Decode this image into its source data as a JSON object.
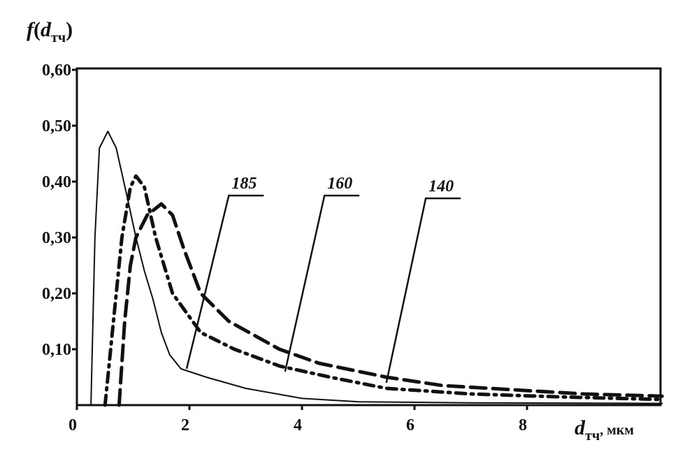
{
  "chart_data": {
    "type": "line",
    "ylabel": "f(dтч)",
    "ylabel_main": "f",
    "ylabel_paren_open": "(",
    "ylabel_var": "d",
    "ylabel_sub": "тч",
    "ylabel_paren_close": ")",
    "xlabel_var": "d",
    "xlabel_sub": "тч",
    "xlabel_unit": ", мкм",
    "xlim": [
      0,
      10.4
    ],
    "ylim": [
      0,
      0.6
    ],
    "xticks": [
      {
        "v": 0,
        "label": "0"
      },
      {
        "v": 2,
        "label": "2"
      },
      {
        "v": 4,
        "label": "4"
      },
      {
        "v": 6,
        "label": "6"
      },
      {
        "v": 8,
        "label": "8"
      }
    ],
    "yticks": [
      {
        "v": 0.1,
        "label": "0,10"
      },
      {
        "v": 0.2,
        "label": "0,20"
      },
      {
        "v": 0.3,
        "label": "0,30"
      },
      {
        "v": 0.4,
        "label": "0,40"
      },
      {
        "v": 0.5,
        "label": "0,50"
      },
      {
        "v": 0.6,
        "label": "0,60"
      }
    ],
    "grid": false,
    "series": [
      {
        "name": "185",
        "style": "solid",
        "points": [
          [
            0.25,
            0
          ],
          [
            0.32,
            0.3
          ],
          [
            0.4,
            0.46
          ],
          [
            0.55,
            0.49
          ],
          [
            0.7,
            0.46
          ],
          [
            0.9,
            0.37
          ],
          [
            1.05,
            0.3
          ],
          [
            1.2,
            0.24
          ],
          [
            1.35,
            0.19
          ],
          [
            1.5,
            0.13
          ],
          [
            1.65,
            0.09
          ],
          [
            1.85,
            0.065
          ],
          [
            2.3,
            0.05
          ],
          [
            3,
            0.03
          ],
          [
            4,
            0.012
          ],
          [
            5,
            0.006
          ],
          [
            7,
            0.004
          ],
          [
            10.4,
            0.003
          ]
        ],
        "label_anchor": [
          1.95,
          0.065
        ],
        "label_at": [
          2.7,
          0.375
        ]
      },
      {
        "name": "160",
        "style": "dashdot",
        "points": [
          [
            0.5,
            0
          ],
          [
            0.65,
            0.15
          ],
          [
            0.8,
            0.3
          ],
          [
            0.95,
            0.39
          ],
          [
            1.05,
            0.41
          ],
          [
            1.2,
            0.39
          ],
          [
            1.4,
            0.3
          ],
          [
            1.7,
            0.2
          ],
          [
            2.2,
            0.13
          ],
          [
            2.8,
            0.1
          ],
          [
            3.6,
            0.07
          ],
          [
            4.5,
            0.05
          ],
          [
            5.5,
            0.03
          ],
          [
            7,
            0.02
          ],
          [
            8.5,
            0.015
          ],
          [
            10.4,
            0.01
          ]
        ],
        "label_anchor": [
          3.7,
          0.06
        ],
        "label_at": [
          4.4,
          0.375
        ]
      },
      {
        "name": "140",
        "style": "dashed",
        "points": [
          [
            0.75,
            0
          ],
          [
            0.85,
            0.15
          ],
          [
            0.95,
            0.25
          ],
          [
            1.05,
            0.3
          ],
          [
            1.25,
            0.34
          ],
          [
            1.5,
            0.36
          ],
          [
            1.7,
            0.34
          ],
          [
            1.9,
            0.28
          ],
          [
            2.2,
            0.2
          ],
          [
            2.7,
            0.15
          ],
          [
            3.6,
            0.1
          ],
          [
            4.3,
            0.075
          ],
          [
            5.5,
            0.05
          ],
          [
            6.5,
            0.035
          ],
          [
            8,
            0.026
          ],
          [
            9,
            0.02
          ],
          [
            10.4,
            0.016
          ]
        ],
        "label_anchor": [
          5.5,
          0.04
        ],
        "label_at": [
          6.2,
          0.37
        ]
      }
    ]
  }
}
